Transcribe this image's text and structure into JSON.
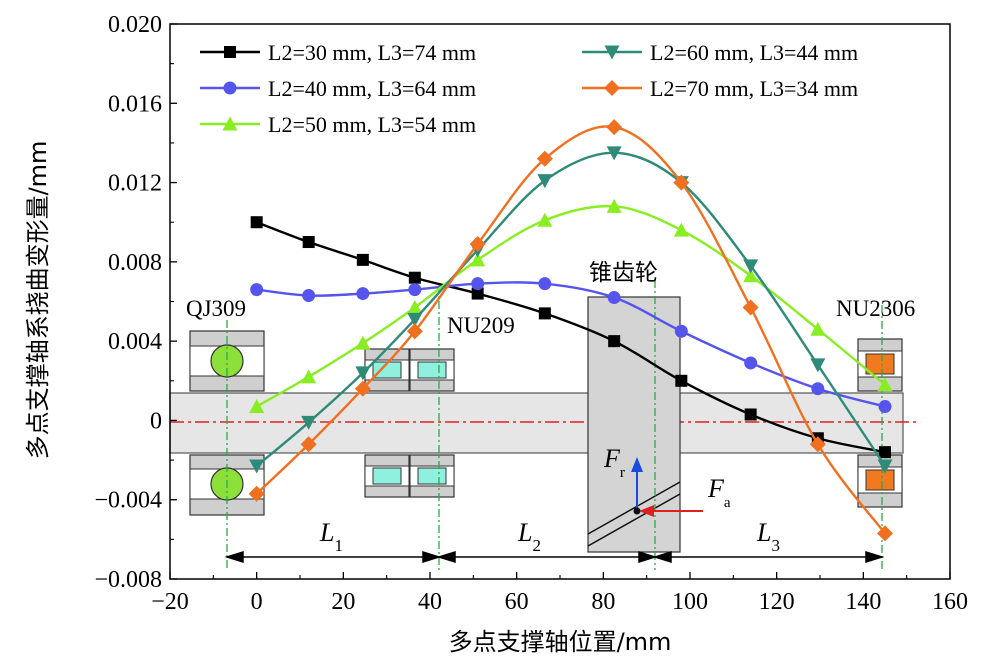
{
  "chart_data": {
    "type": "line",
    "xlabel": "多点支撑轴位置/mm",
    "ylabel": "多点支撑轴系挠曲变形量/mm",
    "xlim": [
      -20,
      160
    ],
    "ylim": [
      -0.008,
      0.02
    ],
    "xticks": [
      -20,
      0,
      20,
      40,
      60,
      80,
      100,
      120,
      140,
      160
    ],
    "yticks": [
      -0.008,
      -0.004,
      0,
      0.004,
      0.008,
      0.012,
      0.016,
      0.02
    ],
    "xtick_labels": [
      "−20",
      "0",
      "20",
      "40",
      "60",
      "80",
      "100",
      "120",
      "140",
      "160"
    ],
    "ytick_labels": [
      "−0.008",
      "−0.004",
      "0",
      "0.004",
      "0.008",
      "0.012",
      "0.016",
      "0.020"
    ],
    "legend_position": "top",
    "series": [
      {
        "name": "L2=30 mm, L3=74 mm",
        "color": "#000000",
        "marker": "square",
        "x": [
          0,
          12,
          24.5,
          36.5,
          51,
          66.5,
          82.5,
          98,
          114,
          129.5,
          145
        ],
        "y": [
          0.01,
          0.009,
          0.0081,
          0.0072,
          0.0064,
          0.0054,
          0.004,
          0.002,
          0.0003,
          -0.0009,
          -0.0016
        ]
      },
      {
        "name": "L2=40 mm, L3=64 mm",
        "color": "#5555ee",
        "marker": "circle",
        "x": [
          0,
          12,
          24.5,
          36.5,
          51,
          66.5,
          82.5,
          98,
          114,
          129.5,
          145
        ],
        "y": [
          0.0066,
          0.0063,
          0.0064,
          0.0066,
          0.0069,
          0.0069,
          0.0062,
          0.0045,
          0.0029,
          0.0016,
          0.0007
        ]
      },
      {
        "name": "L2=50 mm, L3=54 mm",
        "color": "#88ee22",
        "marker": "triangle-up",
        "x": [
          0,
          12,
          24.5,
          36.5,
          51,
          66.5,
          82.5,
          98,
          114,
          129.5,
          145
        ],
        "y": [
          0.0007,
          0.0022,
          0.0039,
          0.0057,
          0.0081,
          0.0101,
          0.0108,
          0.0096,
          0.0073,
          0.0046,
          0.0018
        ]
      },
      {
        "name": "L2=60 mm, L3=44 mm",
        "color": "#2e8b7a",
        "marker": "triangle-down",
        "x": [
          0,
          12,
          24.5,
          36.5,
          51,
          66.5,
          82.5,
          98,
          114,
          129.5,
          145
        ],
        "y": [
          -0.0023,
          -0.0001,
          0.0024,
          0.0051,
          0.0086,
          0.0121,
          0.0135,
          0.012,
          0.0078,
          0.0028,
          -0.0023
        ]
      },
      {
        "name": "L2=70 mm, L3=34 mm",
        "color": "#f07020",
        "marker": "diamond",
        "x": [
          0,
          12,
          24.5,
          36.5,
          51,
          66.5,
          82.5,
          98,
          114,
          129.5,
          145
        ],
        "y": [
          -0.0037,
          -0.0012,
          0.0016,
          0.0045,
          0.0089,
          0.0132,
          0.0148,
          0.012,
          0.0057,
          -0.0012,
          -0.0057
        ]
      }
    ],
    "annotations": {
      "bearing_left": "QJ309",
      "bearing_mid": "NU209",
      "bearing_right": "NU2306",
      "gear": "锥齿轮",
      "force_r": "F",
      "force_r_sub": "r",
      "force_a": "F",
      "force_a_sub": "a",
      "dim_1": "L",
      "dim_1_sub": "1",
      "dim_2": "L",
      "dim_2_sub": "2",
      "dim_3": "L",
      "dim_3_sub": "3"
    }
  }
}
